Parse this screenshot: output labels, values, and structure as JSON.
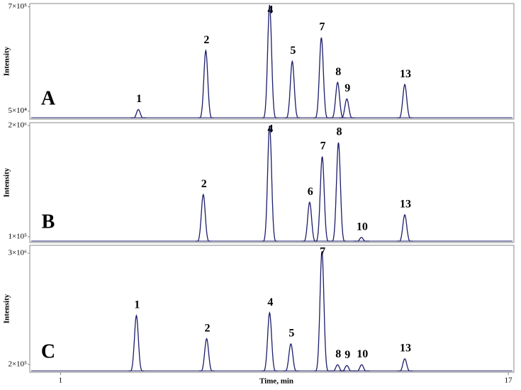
{
  "chart_data": [
    {
      "type": "chromatogram",
      "label": "A",
      "ylabel": "Intensity",
      "color": "#1c1c6b",
      "xlim": [
        -0.1,
        17.2
      ],
      "ylim": [
        0,
        720000
      ],
      "yticks": [
        {
          "value": 50000,
          "label": "5×10⁴"
        },
        {
          "value": 700000,
          "label": "7×10⁵"
        }
      ],
      "x": [
        3.78,
        6.19,
        8.47,
        9.28,
        10.32,
        10.9,
        11.23,
        13.3
      ],
      "values": [
        60000,
        427000,
        711000,
        360000,
        508000,
        229000,
        126000,
        216000
      ],
      "peak_labels": [
        "1",
        "2",
        "4",
        "5",
        "7",
        "8",
        "9",
        "13"
      ]
    },
    {
      "type": "chromatogram",
      "label": "B",
      "ylabel": "Intensity",
      "color": "#1c1c6b",
      "xlim": [
        -0.1,
        17.2
      ],
      "ylim": [
        0,
        2050000
      ],
      "yticks": [
        {
          "value": 100000,
          "label": "1×10⁵"
        },
        {
          "value": 2000000,
          "label": "2×10⁶"
        }
      ],
      "x": [
        6.1,
        8.47,
        9.9,
        10.35,
        10.93,
        11.75,
        13.3
      ],
      "values": [
        820000,
        2000000,
        689000,
        1470000,
        1710000,
        87000,
        474000
      ],
      "peak_labels": [
        "2",
        "4",
        "6",
        "7",
        "8",
        "10",
        "13"
      ]
    },
    {
      "type": "chromatogram",
      "label": "C",
      "ylabel": "Intensity",
      "color": "#1c1c6b",
      "xlim": [
        -0.1,
        17.2
      ],
      "ylim": [
        0,
        3200000
      ],
      "yticks": [
        {
          "value": 200000,
          "label": "2×10⁵"
        },
        {
          "value": 3000000,
          "label": "3×10⁶"
        }
      ],
      "x": [
        3.71,
        6.22,
        8.47,
        9.23,
        10.34,
        10.9,
        11.23,
        11.76,
        13.3
      ],
      "values": [
        1430000,
        847000,
        1500000,
        715000,
        3050000,
        188000,
        170000,
        190000,
        340000
      ],
      "peak_labels": [
        "1",
        "2",
        "4",
        "5",
        "7",
        "8",
        "9",
        "10",
        "13"
      ],
      "xlabel": "Time, min",
      "xticks": [
        1,
        17
      ]
    }
  ]
}
